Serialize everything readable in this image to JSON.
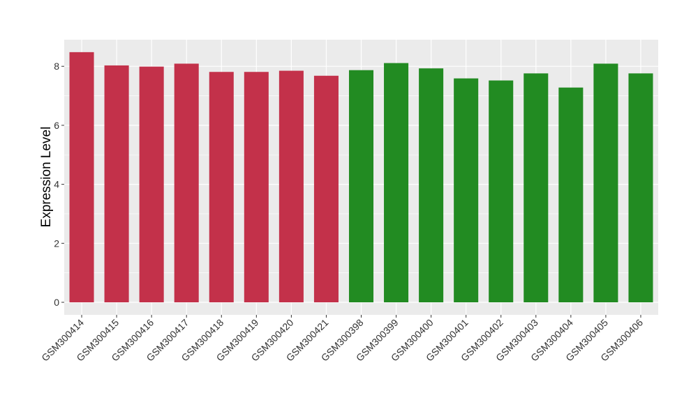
{
  "chart_data": {
    "type": "bar",
    "title": "",
    "xlabel": "",
    "ylabel": "Expression Level",
    "ylim": [
      0,
      8.9
    ],
    "yticks": [
      0,
      2,
      4,
      6,
      8
    ],
    "grid": true,
    "legend": "none",
    "panel_color": "#EBEBEB",
    "grid_color": "#FFFFFF",
    "categories": [
      "GSM300414",
      "GSM300415",
      "GSM300416",
      "GSM300417",
      "GSM300418",
      "GSM300419",
      "GSM300420",
      "GSM300421",
      "GSM300398",
      "GSM300399",
      "GSM300400",
      "GSM300401",
      "GSM300402",
      "GSM300403",
      "GSM300404",
      "GSM300405",
      "GSM300406"
    ],
    "values": [
      8.48,
      8.03,
      7.99,
      8.09,
      7.81,
      7.81,
      7.85,
      7.68,
      7.87,
      8.11,
      7.93,
      7.59,
      7.52,
      7.76,
      7.28,
      8.09,
      7.76
    ],
    "colors": [
      "#C3314A",
      "#C3314A",
      "#C3314A",
      "#C3314A",
      "#C3314A",
      "#C3314A",
      "#C3314A",
      "#C3314A",
      "#228B22",
      "#228B22",
      "#228B22",
      "#228B22",
      "#228B22",
      "#228B22",
      "#228B22",
      "#228B22",
      "#228B22"
    ]
  }
}
